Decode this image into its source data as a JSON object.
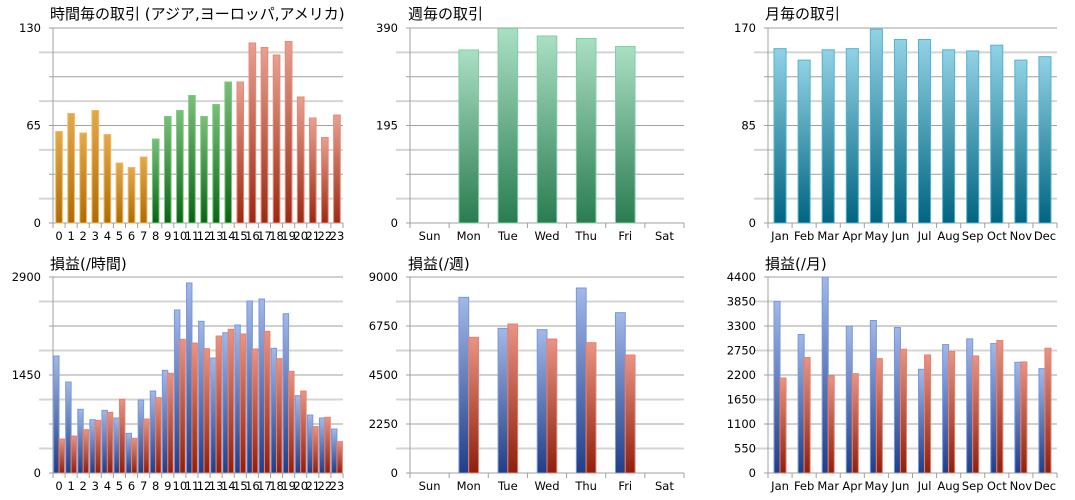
{
  "chart_data": [
    {
      "type": "bar",
      "title": "時間毎の取引 (アジア,ヨーロッパ,アメリカ)",
      "categories": [
        "0",
        "1",
        "2",
        "3",
        "4",
        "5",
        "6",
        "7",
        "8",
        "9",
        "10",
        "11",
        "12",
        "13",
        "14",
        "15",
        "16",
        "17",
        "18",
        "19",
        "20",
        "21",
        "22",
        "23"
      ],
      "values": [
        61,
        73,
        60,
        75,
        59,
        40,
        37,
        44,
        56,
        71,
        75,
        85,
        71,
        79,
        94,
        94,
        120,
        117,
        112,
        121,
        84,
        70,
        57,
        72
      ],
      "ylim": [
        0,
        130
      ],
      "yticks": [
        "0",
        "65",
        "130"
      ],
      "grid": true,
      "color_groups": [
        {
          "categories_from": "0",
          "categories_to": "7",
          "top": "#e4a84c",
          "bottom": "#b06c00",
          "stroke": "#f0b860"
        },
        {
          "categories_from": "8",
          "categories_to": "14",
          "top": "#78c07a",
          "bottom": "#0a6414",
          "stroke": "#80c880"
        },
        {
          "categories_from": "15",
          "categories_to": "23",
          "top": "#e8a090",
          "bottom": "#9a2a12",
          "stroke": "#e88878"
        }
      ]
    },
    {
      "type": "bar",
      "title": "週毎の取引",
      "categories": [
        "Sun",
        "Mon",
        "Tue",
        "Wed",
        "Thu",
        "Fri",
        "Sat"
      ],
      "values": [
        0,
        346,
        389,
        374,
        369,
        353,
        0
      ],
      "ylim": [
        0,
        390
      ],
      "yticks": [
        "0",
        "195",
        "390"
      ],
      "grid": true,
      "color_groups": [
        {
          "categories_from": "Sun",
          "categories_to": "Sat",
          "top": "#aadfc4",
          "bottom": "#2a7c50",
          "stroke": "#7cd0a4"
        }
      ]
    },
    {
      "type": "bar",
      "title": "月毎の取引",
      "categories": [
        "Jan",
        "Feb",
        "Mar",
        "Apr",
        "May",
        "Jun",
        "Jul",
        "Aug",
        "Sep",
        "Oct",
        "Nov",
        "Dec"
      ],
      "values": [
        152,
        142,
        151,
        152,
        169,
        160,
        160,
        151,
        150,
        155,
        142,
        145
      ],
      "ylim": [
        0,
        170
      ],
      "yticks": [
        "0",
        "85",
        "170"
      ],
      "grid": true,
      "color_groups": [
        {
          "categories_from": "Jan",
          "categories_to": "Dec",
          "top": "#92d2e4",
          "bottom": "#006480",
          "stroke": "#50b4d4"
        }
      ]
    },
    {
      "type": "bar",
      "title": "損益(/時間)",
      "categories": [
        "0",
        "1",
        "2",
        "3",
        "4",
        "5",
        "6",
        "7",
        "8",
        "9",
        "10",
        "11",
        "12",
        "13",
        "14",
        "15",
        "16",
        "17",
        "18",
        "19",
        "20",
        "21",
        "22",
        "23"
      ],
      "series": [
        {
          "values": [
            1731,
            1346,
            942,
            789,
            927,
            814,
            587,
            1080,
            1213,
            1519,
            2412,
            2811,
            2244,
            1701,
            2076,
            2190,
            2545,
            2574,
            1845,
            2357,
            1144,
            858,
            814,
            651
          ],
          "top": "#a2b8e8",
          "bottom": "#203e88",
          "stroke": "#7898dc"
        },
        {
          "values": [
            503,
            547,
            641,
            779,
            898,
            1090,
            513,
            799,
            1115,
            1475,
            1978,
            1923,
            1840,
            2027,
            2126,
            2057,
            1835,
            2096,
            1692,
            1504,
            1213,
            686,
            824,
            464
          ],
          "top": "#e89484",
          "bottom": "#8e200c",
          "stroke": "#e88070"
        }
      ],
      "ylim": [
        0,
        2900
      ],
      "yticks": [
        "0",
        "1450",
        "2900"
      ],
      "grid": true
    },
    {
      "type": "bar",
      "title": "損益(/週)",
      "categories": [
        "Sun",
        "Mon",
        "Tue",
        "Wed",
        "Thu",
        "Fri",
        "Sat"
      ],
      "series": [
        {
          "values": [
            0,
            8066,
            6643,
            6582,
            8495,
            7362,
            0
          ],
          "top": "#a2b8e8",
          "bottom": "#203e88",
          "stroke": "#7898dc"
        },
        {
          "values": [
            0,
            6230,
            6842,
            6153,
            5985,
            5418,
            0
          ],
          "top": "#e89484",
          "bottom": "#8e200c",
          "stroke": "#e88070"
        }
      ],
      "ylim": [
        0,
        9000
      ],
      "yticks": [
        "0",
        "2250",
        "4500",
        "6750",
        "9000"
      ],
      "grid": true
    },
    {
      "type": "bar",
      "title": "損益(/月)",
      "categories": [
        "Jan",
        "Feb",
        "Mar",
        "Apr",
        "May",
        "Jun",
        "Jul",
        "Aug",
        "Sep",
        "Oct",
        "Nov",
        "Dec"
      ],
      "series": [
        {
          "values": [
            3852,
            3109,
            4400,
            3296,
            3424,
            3266,
            2328,
            2883,
            3011,
            2906,
            2485,
            2343
          ],
          "top": "#a2b8e8",
          "bottom": "#203e88",
          "stroke": "#7898dc"
        },
        {
          "values": [
            2133,
            2591,
            2178,
            2230,
            2568,
            2778,
            2651,
            2726,
            2628,
            2974,
            2493,
            2801
          ],
          "top": "#e89484",
          "bottom": "#8e200c",
          "stroke": "#e88070"
        }
      ],
      "ylim": [
        0,
        4400
      ],
      "yticks": [
        "0",
        "550",
        "1100",
        "1650",
        "2200",
        "2750",
        "3300",
        "3850",
        "4400"
      ],
      "grid": true
    }
  ]
}
